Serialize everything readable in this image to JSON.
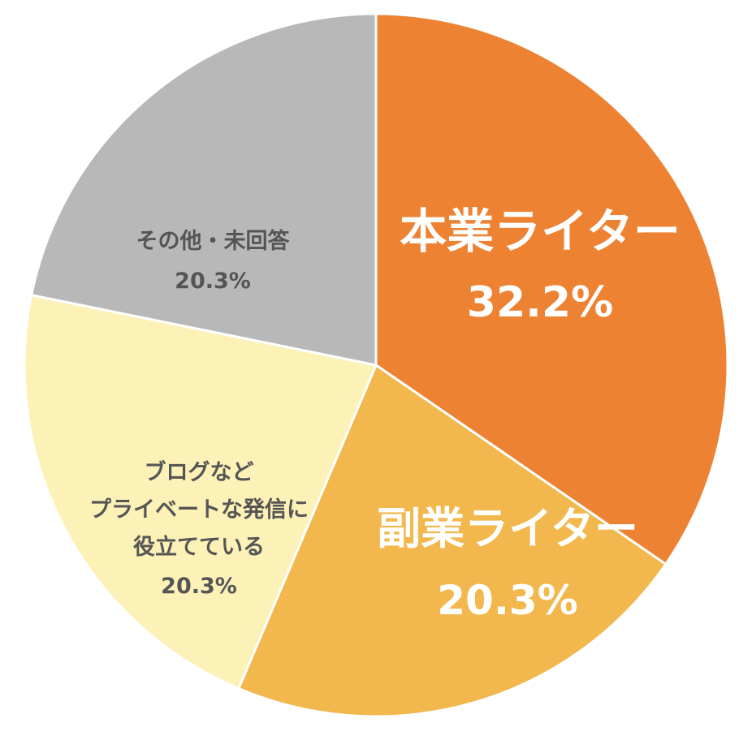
{
  "chart_data": {
    "type": "pie",
    "slices": [
      {
        "label_lines": [
          "本業ライター"
        ],
        "value_text": "32.2%",
        "value": 32.2,
        "color": "#ED8232",
        "text_color": "#ffffff"
      },
      {
        "label_lines": [
          "副業ライター"
        ],
        "value_text": "20.3%",
        "value": 20.3,
        "color": "#F2B84E",
        "text_color": "#ffffff"
      },
      {
        "label_lines": [
          "ブログなど",
          "プライベートな発信に",
          "役立てている"
        ],
        "value_text": "20.3%",
        "value": 20.3,
        "color": "#FCF1B6",
        "text_color": "#555555"
      },
      {
        "label_lines": [
          "その他・未回答"
        ],
        "value_text": "20.3%",
        "value": 20.3,
        "color": "#B8B8B8",
        "text_color": "#555555"
      }
    ]
  }
}
